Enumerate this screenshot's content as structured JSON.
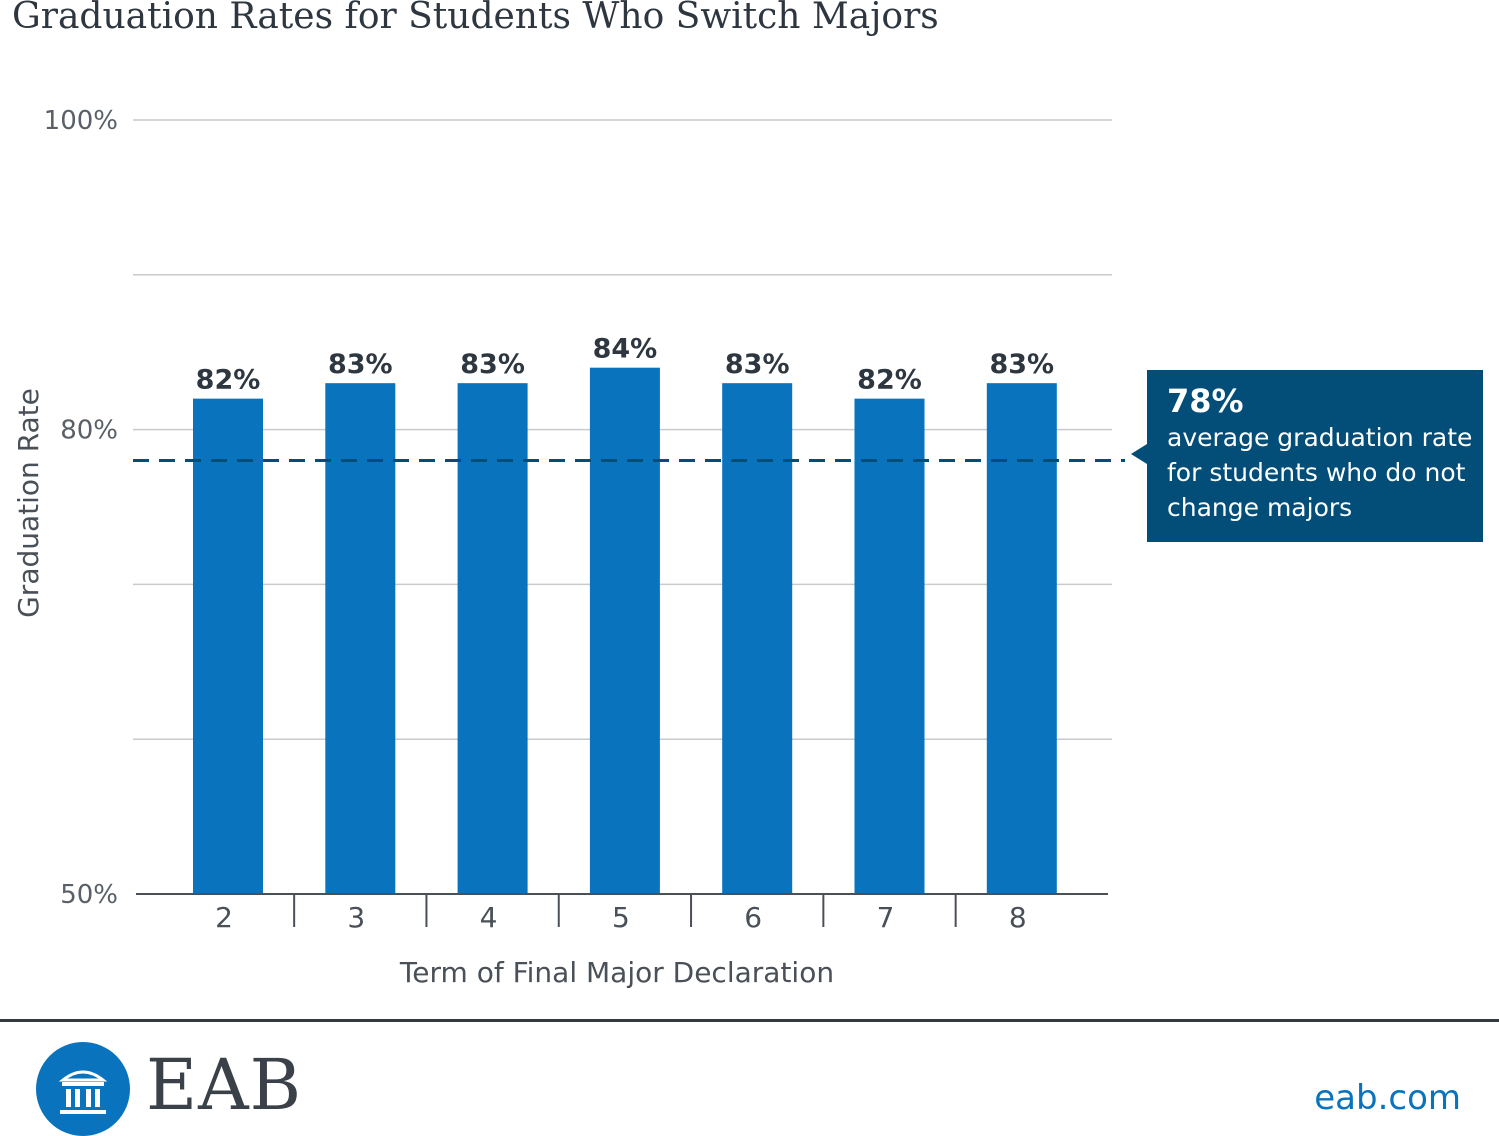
{
  "header": {
    "title": "Graduation Rates for Students Who Switch Majors"
  },
  "chart_data": {
    "type": "bar",
    "title": "Graduation Rates for Students Who Switch Majors",
    "xlabel": "Term of Final Major Declaration",
    "ylabel": "Graduation Rate",
    "categories": [
      "2",
      "3",
      "4",
      "5",
      "6",
      "7",
      "8"
    ],
    "values": [
      82,
      83,
      83,
      84,
      83,
      82,
      83
    ],
    "value_labels": [
      "82%",
      "83%",
      "83%",
      "84%",
      "83%",
      "82%",
      "83%"
    ],
    "ylim": [
      50,
      100
    ],
    "yticks": [
      50,
      60,
      70,
      80,
      90,
      100
    ],
    "ytick_labels": [
      {
        "value": 100,
        "label": "100%"
      },
      {
        "value": 80,
        "label": "80%"
      },
      {
        "value": 50,
        "label": "50%"
      }
    ],
    "grid": true,
    "reference_line": {
      "value": 78,
      "style": "dashed"
    },
    "colors": {
      "bar": "#0a73bd",
      "reference": "#024e79",
      "grid": "#c8cacc"
    }
  },
  "callout": {
    "value": "78%",
    "text": "average graduation rate for students who do not change majors"
  },
  "footer": {
    "logo_text": "EAB",
    "logo_icon": "institution-columns-icon",
    "link_text": "eab.com"
  }
}
